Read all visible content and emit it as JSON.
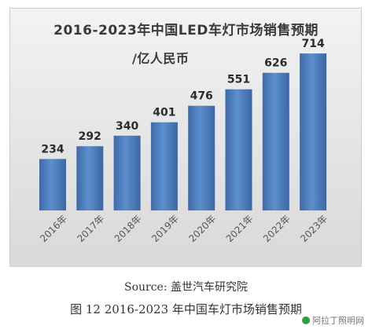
{
  "chart_data": {
    "type": "bar",
    "title": "2016-2023年中国LED车灯市场销售预期",
    "subtitle": "/亿人民币",
    "categories": [
      "2016年",
      "2017年",
      "2018年",
      "2019年",
      "2020年",
      "2021年",
      "2022年",
      "2023年"
    ],
    "values": [
      234,
      292,
      340,
      401,
      476,
      551,
      626,
      714
    ],
    "ylim": [
      0,
      750
    ],
    "grid": false,
    "legend": "none",
    "bar_color": "#4f7fbf"
  },
  "caption": {
    "source": "Source: 盖世汽车研究院",
    "figure": "图 12   2016-2023 年中国车灯市场销售预期"
  },
  "watermark": "阿拉丁照明网"
}
